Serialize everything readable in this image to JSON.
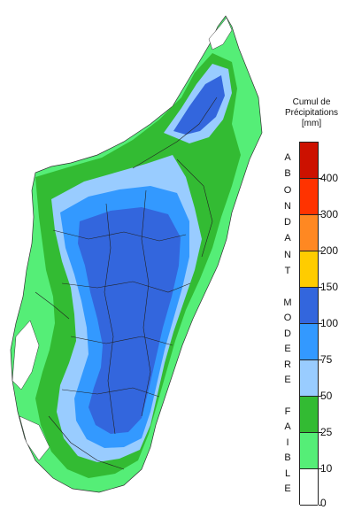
{
  "legend": {
    "title_line1": "Cumul de",
    "title_line2": "Précipitations",
    "title_line3": "[mm]",
    "ticks": [
      "0",
      "10",
      "25",
      "50",
      "75",
      "100",
      "150",
      "200",
      "300",
      "400"
    ],
    "colors": [
      "#ffffff",
      "#55ee77",
      "#33bb33",
      "#99ccff",
      "#3399ff",
      "#3366dd",
      "#ffcc00",
      "#ff8822",
      "#ff3300",
      "#cc1100"
    ],
    "categories": [
      {
        "name": "ABONDANT",
        "letters": [
          "A",
          "B",
          "O",
          "N",
          "D",
          "A",
          "N",
          "T"
        ]
      },
      {
        "name": "MODERE",
        "letters": [
          "M",
          "O",
          "D",
          "E",
          "R",
          "E"
        ]
      },
      {
        "name": "FAIBLE",
        "letters": [
          "F",
          "A",
          "I",
          "B",
          "L",
          "E"
        ]
      }
    ]
  },
  "map": {
    "region": "Madagascar",
    "fill_colors": {
      "coast": "#55ee77",
      "faible": "#33bb33",
      "modere_light": "#99ccff",
      "modere": "#3399ff",
      "modere_dark": "#3366dd",
      "none": "#ffffff"
    }
  }
}
